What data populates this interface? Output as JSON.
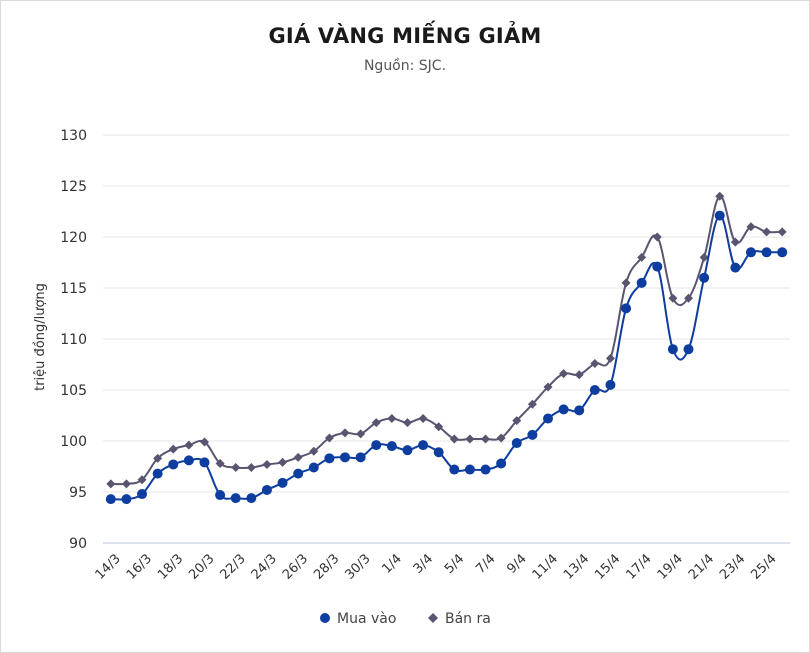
{
  "chart_data": {
    "type": "line",
    "title": "GIÁ VÀNG MIẾNG GIẢM",
    "subtitle": "Nguồn: SJC.",
    "ylabel": "triệu đồng/lượng",
    "xlabel": "",
    "ylim": [
      90,
      130
    ],
    "yticks": [
      90,
      95,
      100,
      105,
      110,
      115,
      120,
      125,
      130
    ],
    "grid": true,
    "legend_position": "bottom",
    "x": [
      "14/3",
      "15/3",
      "16/3",
      "17/3",
      "18/3",
      "19/3",
      "20/3",
      "21/3",
      "22/3",
      "23/3",
      "24/3",
      "25/3",
      "26/3",
      "27/3",
      "28/3",
      "29/3",
      "30/3",
      "31/3",
      "1/4",
      "2/4",
      "3/4",
      "4/4",
      "5/4",
      "6/4",
      "7/4",
      "8/4",
      "9/4",
      "10/4",
      "11/4",
      "12/4",
      "13/4",
      "14/4",
      "15/4",
      "16/4",
      "17/4",
      "18/4",
      "19/4",
      "20/4",
      "21/4",
      "22/4",
      "23/4",
      "24/4",
      "25/4",
      "26/4"
    ],
    "x_tick_labels": [
      "14/3",
      "16/3",
      "18/3",
      "20/3",
      "22/3",
      "24/3",
      "26/3",
      "28/3",
      "30/3",
      "1/4",
      "3/4",
      "5/4",
      "7/4",
      "9/4",
      "11/4",
      "13/4",
      "15/4",
      "17/4",
      "19/4",
      "21/4",
      "23/4",
      "25/4"
    ],
    "series": [
      {
        "name": "Mua vào",
        "color": "#0d3d9e",
        "marker": "circle",
        "values": [
          94.3,
          94.3,
          94.8,
          96.8,
          97.7,
          98.1,
          97.9,
          94.7,
          94.4,
          94.4,
          95.2,
          95.9,
          96.8,
          97.4,
          98.3,
          98.4,
          98.4,
          99.6,
          99.5,
          99.1,
          99.6,
          98.9,
          97.2,
          97.2,
          97.2,
          97.8,
          99.8,
          100.6,
          102.2,
          103.1,
          103.0,
          105.0,
          105.5,
          113.0,
          115.5,
          117.1,
          109.0,
          109.0,
          116.0,
          122.1,
          117.0,
          118.5,
          118.5,
          118.5
        ]
      },
      {
        "name": "Bán ra",
        "color": "#5a5470",
        "marker": "diamond",
        "values": [
          95.8,
          95.8,
          96.2,
          98.3,
          99.2,
          99.6,
          99.9,
          97.8,
          97.4,
          97.4,
          97.7,
          97.9,
          98.4,
          99.0,
          100.3,
          100.8,
          100.7,
          101.8,
          102.2,
          101.8,
          102.2,
          101.4,
          100.2,
          100.2,
          100.2,
          100.3,
          102.0,
          103.6,
          105.3,
          106.6,
          106.5,
          107.6,
          108.1,
          115.5,
          118.0,
          120.0,
          114.0,
          114.0,
          118.0,
          124.0,
          119.5,
          121.0,
          120.5,
          120.5
        ]
      }
    ]
  }
}
